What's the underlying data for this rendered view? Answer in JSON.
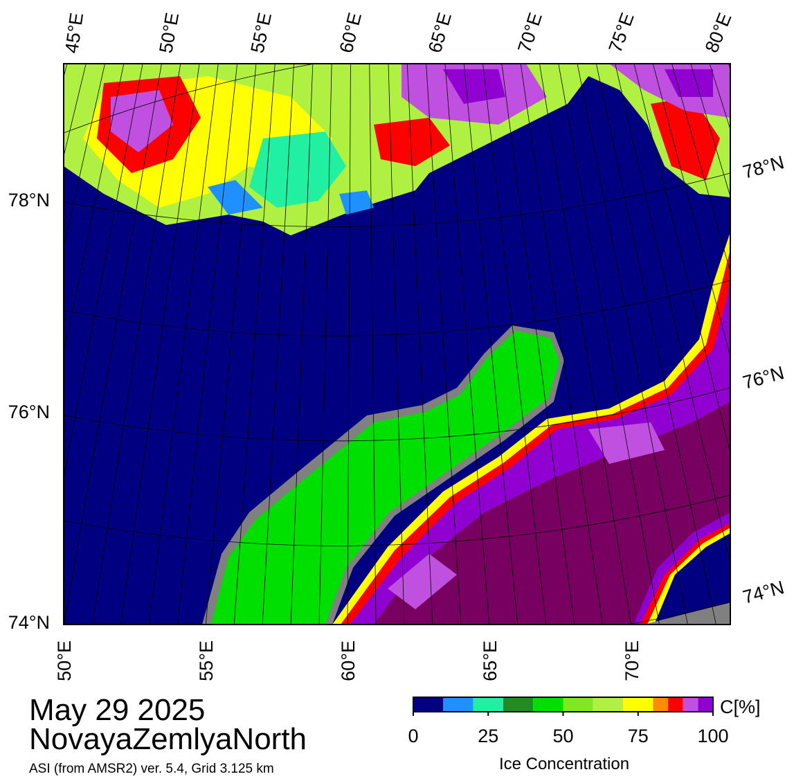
{
  "map": {
    "top_lon_labels": [
      "45°E",
      "50°E",
      "55°E",
      "60°E",
      "65°E",
      "70°E",
      "75°E",
      "80°E"
    ],
    "bottom_lon_labels": [
      "50°E",
      "55°E",
      "60°E",
      "65°E",
      "70°E"
    ],
    "left_lat_labels": [
      "78°N",
      "76°N",
      "74°N"
    ],
    "right_lat_labels": [
      "78°N",
      "76°N",
      "74°N"
    ]
  },
  "date": "May 29 2025",
  "region": "NovayaZemlyaNorth",
  "source": "ASI (from AMSR2) ver. 5.4,  Grid 3.125 km",
  "colorbar": {
    "label": "Ice Concentration",
    "unit": "C[%]",
    "range": [
      0,
      100
    ],
    "ticks": [
      0,
      25,
      50,
      75,
      100
    ],
    "bins": [
      0,
      10,
      20,
      30,
      40,
      50,
      60,
      70,
      80,
      85,
      90,
      95,
      100
    ],
    "colors": [
      "#000080",
      "#1e90ff",
      "#20f0a0",
      "#228b22",
      "#00e000",
      "#80e820",
      "#b0f040",
      "#ffff00",
      "#ff8c00",
      "#ff0000",
      "#c050e0",
      "#9000d0"
    ]
  }
}
